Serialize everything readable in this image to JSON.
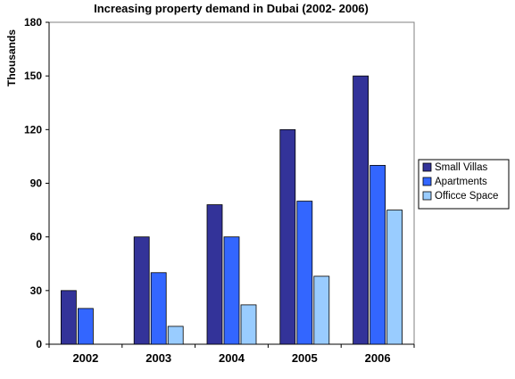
{
  "chart_data": {
    "type": "bar",
    "title": "Increasing property demand in Dubai (2002- 2006)",
    "xlabel": "",
    "ylabel": "Thousands",
    "ylim": [
      0,
      180
    ],
    "yticks": [
      "0",
      "30",
      "60",
      "90",
      "120",
      "150",
      "180"
    ],
    "categories": [
      "2002",
      "2003",
      "2004",
      "2005",
      "2006"
    ],
    "series": [
      {
        "name": "Small Villas",
        "color": "#333399",
        "values": [
          30,
          60,
          78,
          120,
          150
        ]
      },
      {
        "name": "Apartments",
        "color": "#3366FF",
        "values": [
          20,
          40,
          60,
          80,
          100
        ]
      },
      {
        "name": "Officce Space",
        "color": "#99CCFF",
        "values": [
          0,
          10,
          22,
          38,
          75
        ]
      }
    ],
    "grid": false,
    "legend_position": "right"
  }
}
